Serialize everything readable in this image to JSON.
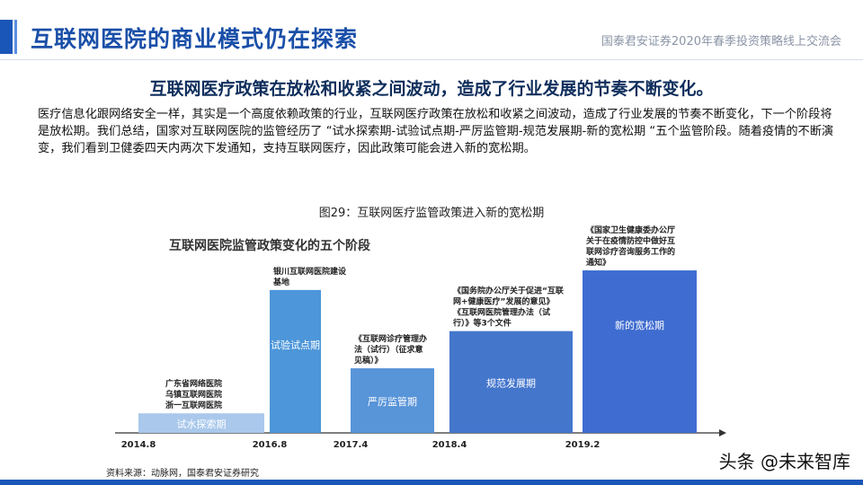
{
  "header": {
    "title": "互联网医院的商业模式仍在探索",
    "right_label": "国泰君安证券2020年春季投资策略线上交流会"
  },
  "subheading": "互联网医疗政策在放松和收紧之间波动，造成了行业发展的节奏不断变化。",
  "body_text": "医疗信息化跟网络安全一样，其实是一个高度依赖政策的行业，互联网医疗政策在放松和收紧之间波动，造成了行业发展的节奏不断变化，下一个阶段将是放松期。我们总结，国家对互联网医院的监管经历了 “试水探索期-试验试点期-严厉监管期-规范发展期-新的宽松期 “五个监管阶段。随着疫情的不断演变，我们看到卫健委四天内两次下发通知，支持互联网医疗，因此政策可能会进入新的宽松期。",
  "figure_caption": "图29：互联网医疗监管政策进入新的宽松期",
  "source": "资料来源：动脉网，国泰君安证券研究",
  "watermark": "头条 @未来智库",
  "colors": {
    "title_blue": "#1a4fa8",
    "bar_1": "#a9c8eb",
    "bar_2": "#4d96d9",
    "bar_3": "#5894d8",
    "bar_4": "#4476cc",
    "bar_5": "#3f6cd0"
  },
  "chart_data": {
    "type": "bar",
    "title": "互联网医院监管政策变化的五个阶段",
    "x_ticks": [
      "2014.8",
      "2016.8",
      "2017.4",
      "2018.4",
      "2019.2"
    ],
    "ylim": [
      0,
      100
    ],
    "grid": false,
    "stages": [
      {
        "label": "试水探索期",
        "level": 10,
        "annotation": [
          "广东省网络医院",
          "乌镇互联网医院",
          "浙一互联网医院"
        ]
      },
      {
        "label": "试验试点期",
        "level": 73,
        "annotation": [
          "银川互联网医院建设",
          "基地"
        ]
      },
      {
        "label": "严厉监管期",
        "level": 33,
        "annotation": [
          "《互联网诊疗管理办",
          "法（试行）（征求意",
          "见稿）》"
        ]
      },
      {
        "label": "规范发展期",
        "level": 52,
        "annotation": [
          "《国务院办公厅关于促进“互联",
          "网+健康医疗”发展的意见》",
          "《互联网医院管理办法（试",
          "行）》等3个文件"
        ]
      },
      {
        "label": "新的宽松期",
        "level": 83,
        "annotation": [
          "《国家卫生健康委办公厅",
          "关于在疫情防控中做好互",
          "联网诊疗咨询服务工作的",
          "通知》"
        ]
      }
    ]
  }
}
